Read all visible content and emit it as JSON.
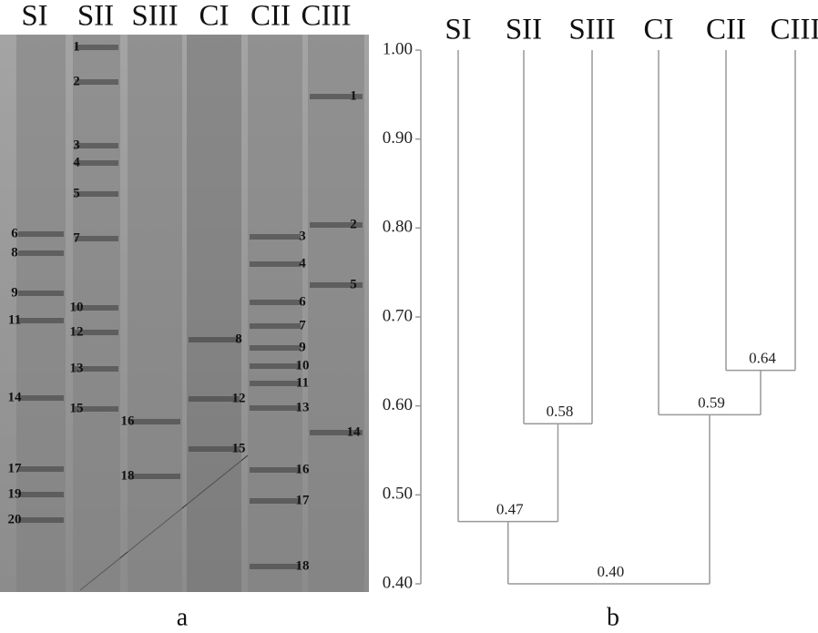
{
  "gel": {
    "lane_labels": [
      "SI",
      "SII",
      "SIII",
      "CI",
      "CII",
      "CIII"
    ],
    "band_labels": [
      [
        "6",
        "8",
        "9",
        "11",
        "14",
        "17",
        "19",
        "20"
      ],
      [
        "1",
        "2",
        "3",
        "4",
        "5",
        "7",
        "10",
        "12",
        "13",
        "15"
      ],
      [
        "16",
        "18"
      ],
      [
        "8",
        "12",
        "15"
      ],
      [
        "3",
        "4",
        "6",
        "7",
        "9",
        "10",
        "11",
        "13",
        "16",
        "17",
        "18"
      ],
      [
        "1",
        "2",
        "5",
        "14"
      ]
    ],
    "panel_label": "a"
  },
  "chart_data": {
    "type": "dendrogram",
    "panel_label": "b",
    "ylim": [
      0.4,
      1.0
    ],
    "yticks": [
      {
        "value": 1.0,
        "label": "1.00"
      },
      {
        "value": 0.9,
        "label": "0.90"
      },
      {
        "value": 0.8,
        "label": "0.80"
      },
      {
        "value": 0.7,
        "label": "0.70"
      },
      {
        "value": 0.6,
        "label": "0.60"
      },
      {
        "value": 0.5,
        "label": "0.50"
      },
      {
        "value": 0.4,
        "label": "0.40"
      }
    ],
    "tree": {
      "value": 0.4,
      "value_label": "0.40",
      "children": [
        {
          "value": 0.47,
          "value_label": "0.47",
          "children": [
            "SI",
            {
              "value": 0.58,
              "value_label": "0.58",
              "children": [
                "SII",
                "SIII"
              ]
            }
          ]
        },
        {
          "value": 0.59,
          "value_label": "0.59",
          "children": [
            "CI",
            {
              "value": 0.64,
              "value_label": "0.64",
              "children": [
                "CII",
                "CIII"
              ]
            }
          ]
        }
      ]
    }
  }
}
